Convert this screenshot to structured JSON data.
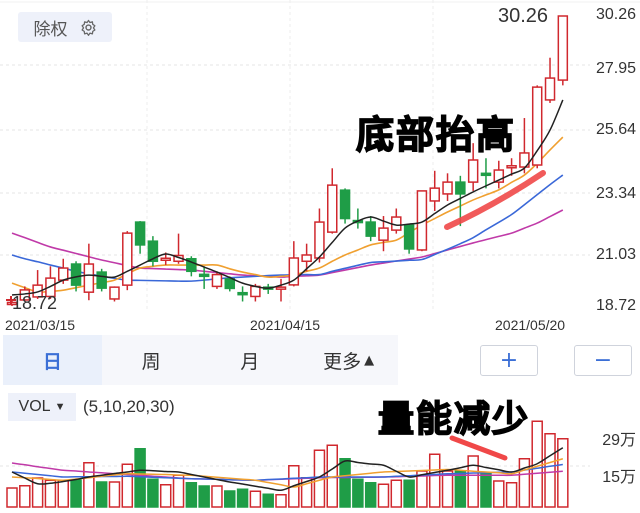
{
  "toolbar": {
    "adjust_label": "除权",
    "settings_icon": "gear-icon"
  },
  "period_tabs": [
    {
      "label": "日",
      "active": true
    },
    {
      "label": "周"
    },
    {
      "label": "月"
    },
    {
      "label": "更多"
    }
  ],
  "more_arrow": "▲",
  "zoom_in_label": "+",
  "zoom_out_label": "−",
  "volume_panel": {
    "indicator": "VOL",
    "dropdown_arrow": "▼",
    "params": "(5,10,20,30)"
  },
  "annotations": {
    "price_note": "底部抬高",
    "volume_note": "量能减少"
  },
  "colors": {
    "up": "#d0282e",
    "down": "#1f9d47",
    "ma5": "#222222",
    "ma10": "#f0a030",
    "ma20": "#3a68d8",
    "ma30": "#c03aa8",
    "accent": "#3b6fd6",
    "annotation_stroke": "#f04848"
  },
  "chart_data": [
    {
      "type": "candlestick",
      "title": "",
      "max_label": "30.26",
      "min_label": "18.72",
      "y_ticks": [
        "30.26",
        "27.95",
        "25.64",
        "23.34",
        "21.03",
        "18.72"
      ],
      "ylim": [
        18.72,
        30.26
      ],
      "x_tick_labels": [
        "2021/03/15",
        "2021/04/15",
        "2021/05/20"
      ],
      "grid": true,
      "open": [
        18.85,
        18.96,
        19.08,
        19.1,
        19.75,
        20.39,
        19.27,
        20.07,
        19.0,
        19.55,
        22.06,
        21.3,
        20.6,
        20.5,
        20.6,
        19.98,
        19.5,
        19.8,
        19.25,
        19.1,
        19.47,
        19.43,
        19.56,
        20.5,
        20.63,
        21.66,
        23.33,
        22.12,
        22.06,
        21.34,
        21.74,
        21.94,
        20.95,
        22.9,
        23.18,
        23.65,
        23.65,
        24.0,
        23.65,
        24.27,
        24.25,
        24.33,
        26.92,
        27.71
      ],
      "high": [
        18.95,
        19.5,
        20.15,
        20.3,
        20.6,
        20.5,
        21.2,
        20.2,
        19.5,
        21.7,
        22.1,
        21.5,
        20.85,
        21.6,
        20.7,
        20.3,
        20.1,
        19.9,
        19.5,
        19.6,
        19.6,
        19.8,
        21.3,
        21.2,
        22.6,
        24.2,
        23.4,
        22.6,
        22.3,
        22.3,
        22.6,
        22.0,
        23.3,
        24.1,
        24.0,
        23.9,
        25.2,
        24.6,
        24.5,
        24.6,
        26.2,
        27.5,
        28.6,
        30.26
      ],
      "low": [
        18.72,
        18.9,
        19.0,
        19.0,
        19.6,
        19.3,
        18.95,
        19.3,
        18.9,
        19.35,
        20.8,
        20.3,
        20.35,
        20.4,
        19.9,
        19.4,
        19.4,
        19.3,
        18.9,
        18.9,
        19.2,
        18.9,
        19.5,
        20.1,
        20.45,
        21.6,
        22.0,
        21.8,
        21.3,
        20.9,
        21.6,
        20.8,
        20.9,
        22.5,
        22.9,
        21.9,
        23.3,
        23.4,
        23.4,
        23.9,
        24.0,
        24.2,
        26.8,
        27.5
      ],
      "close": [
        18.86,
        19.36,
        19.55,
        19.83,
        20.23,
        19.55,
        20.39,
        19.43,
        19.47,
        21.62,
        21.15,
        20.5,
        20.62,
        20.73,
        20.1,
        19.95,
        19.97,
        19.42,
        19.2,
        19.5,
        19.43,
        19.47,
        20.63,
        20.75,
        22.06,
        23.53,
        22.2,
        22.08,
        21.5,
        21.82,
        22.26,
        20.99,
        23.3,
        23.41,
        23.65,
        23.18,
        24.53,
        23.95,
        24.13,
        24.3,
        24.81,
        27.43,
        27.79,
        30.26
      ],
      "series": [
        {
          "key": "ma5",
          "values": [
            19.16,
            19.2,
            19.28,
            19.5,
            19.75,
            19.88,
            19.95,
            19.9,
            19.87,
            20.1,
            20.35,
            20.6,
            20.79,
            20.65,
            20.47,
            20.27,
            20.07,
            19.85,
            19.63,
            19.5,
            19.43,
            19.55,
            19.75,
            20.2,
            20.67,
            21.25,
            21.82,
            22.1,
            22.26,
            22.1,
            21.94,
            21.98,
            22.06,
            22.4,
            22.74,
            23.0,
            23.26,
            23.5,
            23.73,
            23.97,
            24.21,
            24.9,
            25.72,
            26.92
          ]
        },
        {
          "key": "ma10",
          "values": [
            19.63,
            19.45,
            19.28,
            19.3,
            19.35,
            19.45,
            19.55,
            19.65,
            19.75,
            20.0,
            20.23,
            20.3,
            20.35,
            20.35,
            20.35,
            20.35,
            20.35,
            20.2,
            20.07,
            19.97,
            19.87,
            19.9,
            19.95,
            20.1,
            20.23,
            20.5,
            20.75,
            20.95,
            21.15,
            21.25,
            21.34,
            21.64,
            21.94,
            22.2,
            22.46,
            22.7,
            22.94,
            23.14,
            23.34,
            23.64,
            23.93,
            24.4,
            24.93,
            25.44
          ]
        },
        {
          "key": "ma20",
          "values": [
            20.75,
            20.6,
            20.48,
            20.35,
            20.23,
            20.1,
            20.0,
            19.9,
            19.82,
            19.75,
            19.74,
            19.73,
            19.72,
            19.71,
            19.71,
            19.75,
            19.8,
            19.84,
            19.87,
            19.9,
            19.93,
            19.95,
            19.96,
            19.97,
            19.97,
            20.1,
            20.22,
            20.34,
            20.45,
            20.48,
            20.51,
            20.54,
            20.57,
            20.77,
            20.98,
            21.2,
            21.44,
            21.75,
            22.05,
            22.36,
            22.75,
            23.15,
            23.55,
            23.93
          ]
        },
        {
          "key": "ma30",
          "values": [
            21.62,
            21.44,
            21.25,
            21.07,
            20.94,
            20.81,
            20.68,
            20.55,
            20.44,
            20.33,
            20.23,
            20.21,
            20.19,
            20.17,
            20.15,
            20.1,
            20.05,
            20.0,
            19.95,
            19.92,
            19.9,
            19.87,
            19.9,
            19.92,
            19.95,
            20.05,
            20.15,
            20.25,
            20.35,
            20.43,
            20.51,
            20.59,
            20.67,
            20.81,
            20.95,
            21.09,
            21.23,
            21.36,
            21.49,
            21.62,
            21.82,
            22.02,
            22.28,
            22.54
          ]
        }
      ]
    },
    {
      "type": "bar",
      "title": "",
      "unit": "万",
      "y_ticks": [
        "29万",
        "15万"
      ],
      "values": [
        7.6,
        8.5,
        11.6,
        10.7,
        10.7,
        10.7,
        17.7,
        10,
        10,
        17.1,
        23.3,
        11.1,
        8.9,
        12.7,
        9.7,
        8.4,
        8.4,
        6.4,
        7.1,
        6.3,
        5.1,
        4.9,
        16.5,
        11.7,
        22.7,
        24.7,
        19.3,
        11.1,
        9.7,
        9.1,
        10.7,
        10.7,
        14.4,
        21.1,
        14.4,
        14.3,
        20.4,
        13.6,
        10.4,
        9.7,
        19.3,
        34.3,
        29.3,
        27.3
      ],
      "series": [
        {
          "key": "ma5",
          "values": [
            14,
            11.6,
            9.3,
            9.5,
            10.2,
            11,
            12,
            12.7,
            13.4,
            14,
            14.7,
            14.5,
            14.2,
            14,
            13,
            12,
            11,
            10,
            9.2,
            8.3,
            7.5,
            6.7,
            8.5,
            10.2,
            12,
            15.2,
            18.4,
            17.8,
            17.2,
            16.7,
            14.3,
            12,
            12.9,
            13.8,
            14.7,
            15.7,
            16.7,
            15.8,
            14.9,
            14,
            15.6,
            17.3,
            20.5,
            23.7
          ]
        },
        {
          "key": "ma10",
          "values": [
            12,
            11.7,
            11.4,
            11,
            10.7,
            11.2,
            11.7,
            12.3,
            12.8,
            13.3,
            13.2,
            13.1,
            13,
            12.8,
            12.7,
            12.3,
            11.9,
            11.5,
            11.1,
            10.7,
            9.8,
            8.9,
            8,
            9.3,
            10.7,
            12,
            12.5,
            13,
            13.5,
            14,
            14.2,
            14.4,
            14.6,
            14.8,
            15,
            14.7,
            14.3,
            14,
            13.7,
            13.3,
            14.8,
            16.3,
            17.8,
            19.3
          ]
        },
        {
          "key": "ma20",
          "values": [
            14,
            13.5,
            13,
            12.5,
            12,
            12.1,
            12.1,
            12.2,
            12.2,
            12.3,
            12.1,
            11.9,
            11.7,
            11.5,
            11.3,
            11.2,
            11.1,
            10.9,
            10.8,
            10.7,
            11,
            11.2,
            11.5,
            11.7,
            12,
            12,
            12,
            12,
            12,
            12,
            12.3,
            12.5,
            12.8,
            13,
            13.3,
            13.4,
            13.6,
            13.7,
            13.9,
            14,
            14.8,
            15.5,
            16.3,
            17
          ]
        },
        {
          "key": "ma30",
          "values": [
            17.6,
            16.9,
            16.1,
            15.4,
            14.7,
            14.4,
            14,
            13.7,
            13.3,
            13,
            12.7,
            12.3,
            12,
            11.6,
            11.3,
            11.2,
            11.1,
            10.9,
            10.8,
            10.7,
            10.9,
            11.1,
            11.3,
            11.5,
            11.7,
            11.8,
            11.8,
            11.9,
            11.9,
            12,
            12.1,
            12.3,
            12.4,
            12.6,
            12.7,
            12.7,
            12.7,
            12.7,
            12.7,
            12.7,
            13.1,
            13.5,
            13.9,
            14.3
          ]
        }
      ]
    }
  ]
}
